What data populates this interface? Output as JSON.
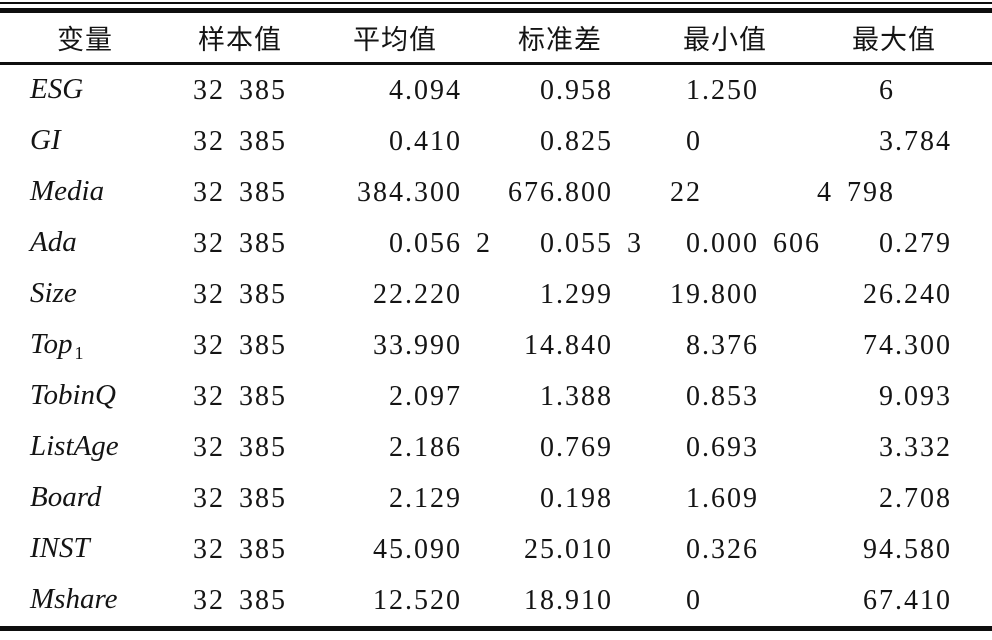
{
  "table": {
    "columns": [
      "变量",
      "样本值",
      "平均值",
      "标准差",
      "最小值",
      "最大值"
    ],
    "column_meanings": [
      "Variable",
      "Sample size",
      "Mean",
      "Std. dev.",
      "Minimum",
      "Maximum"
    ],
    "rows": [
      {
        "var": "ESG",
        "sub": "",
        "n": "32 385",
        "mean": {
          "ip": "4",
          "fp": ".094"
        },
        "sd": {
          "ip": "0",
          "fp": ".958"
        },
        "min": {
          "ip": "1",
          "fp": ".250"
        },
        "max": {
          "ip": "6",
          "fp": ""
        }
      },
      {
        "var": "GI",
        "sub": "",
        "n": "32 385",
        "mean": {
          "ip": "0",
          "fp": ".410"
        },
        "sd": {
          "ip": "0",
          "fp": ".825"
        },
        "min": {
          "ip": "0",
          "fp": ""
        },
        "max": {
          "ip": "3",
          "fp": ".784"
        }
      },
      {
        "var": "Media",
        "sub": "",
        "n": "32 385",
        "mean": {
          "ip": "384",
          "fp": ".300"
        },
        "sd": {
          "ip": "676",
          "fp": ".800"
        },
        "min": {
          "ip": "22",
          "fp": ""
        },
        "max": {
          "ip": "4 798",
          "fp": ""
        }
      },
      {
        "var": "Ada",
        "sub": "",
        "n": "32 385",
        "mean": {
          "ip": "0",
          "fp": ".056 2"
        },
        "sd": {
          "ip": "0",
          "fp": ".055 3"
        },
        "min": {
          "ip": "0",
          "fp": ".000 606"
        },
        "max": {
          "ip": "0",
          "fp": ".279"
        }
      },
      {
        "var": "Size",
        "sub": "",
        "n": "32 385",
        "mean": {
          "ip": "22",
          "fp": ".220"
        },
        "sd": {
          "ip": "1",
          "fp": ".299"
        },
        "min": {
          "ip": "19",
          "fp": ".800"
        },
        "max": {
          "ip": "26",
          "fp": ".240"
        }
      },
      {
        "var": "Top",
        "sub": "1",
        "n": "32 385",
        "mean": {
          "ip": "33",
          "fp": ".990"
        },
        "sd": {
          "ip": "14",
          "fp": ".840"
        },
        "min": {
          "ip": "8",
          "fp": ".376"
        },
        "max": {
          "ip": "74",
          "fp": ".300"
        }
      },
      {
        "var": "TobinQ",
        "sub": "",
        "n": "32 385",
        "mean": {
          "ip": "2",
          "fp": ".097"
        },
        "sd": {
          "ip": "1",
          "fp": ".388"
        },
        "min": {
          "ip": "0",
          "fp": ".853"
        },
        "max": {
          "ip": "9",
          "fp": ".093"
        }
      },
      {
        "var": "ListAge",
        "sub": "",
        "n": "32 385",
        "mean": {
          "ip": "2",
          "fp": ".186"
        },
        "sd": {
          "ip": "0",
          "fp": ".769"
        },
        "min": {
          "ip": "0",
          "fp": ".693"
        },
        "max": {
          "ip": "3",
          "fp": ".332"
        }
      },
      {
        "var": "Board",
        "sub": "",
        "n": "32 385",
        "mean": {
          "ip": "2",
          "fp": ".129"
        },
        "sd": {
          "ip": "0",
          "fp": ".198"
        },
        "min": {
          "ip": "1",
          "fp": ".609"
        },
        "max": {
          "ip": "2",
          "fp": ".708"
        }
      },
      {
        "var": "INST",
        "sub": "",
        "n": "32 385",
        "mean": {
          "ip": "45",
          "fp": ".090"
        },
        "sd": {
          "ip": "25",
          "fp": ".010"
        },
        "min": {
          "ip": "0",
          "fp": ".326"
        },
        "max": {
          "ip": "94",
          "fp": ".580"
        }
      },
      {
        "var": "Mshare",
        "sub": "",
        "n": "32 385",
        "mean": {
          "ip": "12",
          "fp": ".520"
        },
        "sd": {
          "ip": "18",
          "fp": ".910"
        },
        "min": {
          "ip": "0",
          "fp": ""
        },
        "max": {
          "ip": "67",
          "fp": ".410"
        }
      }
    ],
    "ink_color": "#0e0e0e"
  }
}
